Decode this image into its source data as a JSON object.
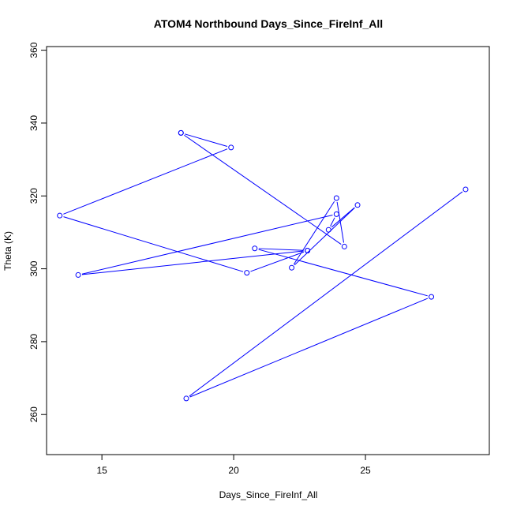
{
  "chart_data": {
    "type": "scatter",
    "title": "ATOM4 Northbound Days_Since_FireInf_All",
    "xlabel": "Days_Since_FireInf_All",
    "ylabel": "Theta (K)",
    "xlim": [
      12.9,
      29.7
    ],
    "ylim": [
      249,
      361
    ],
    "x_ticks": [
      15,
      20,
      25
    ],
    "y_ticks": [
      260,
      280,
      300,
      320,
      340,
      360
    ],
    "grid": false,
    "legend": "none",
    "color": "#0000ff",
    "series": [
      {
        "x": [
          18.0,
          19.9,
          13.4,
          20.5,
          22.8,
          20.8,
          27.5,
          18.2,
          28.8
        ],
        "y": [
          337.3,
          333.3,
          314.6,
          298.9,
          305.0,
          305.6,
          292.3,
          264.4,
          321.8
        ]
      },
      {
        "x": [
          18.0,
          24.2,
          23.9,
          22.2,
          24.7,
          23.6,
          23.9,
          14.1,
          22.8
        ],
        "y": [
          337.3,
          306.1,
          319.4,
          300.3,
          317.5,
          310.7,
          315.0,
          298.3,
          305.0
        ]
      }
    ]
  }
}
